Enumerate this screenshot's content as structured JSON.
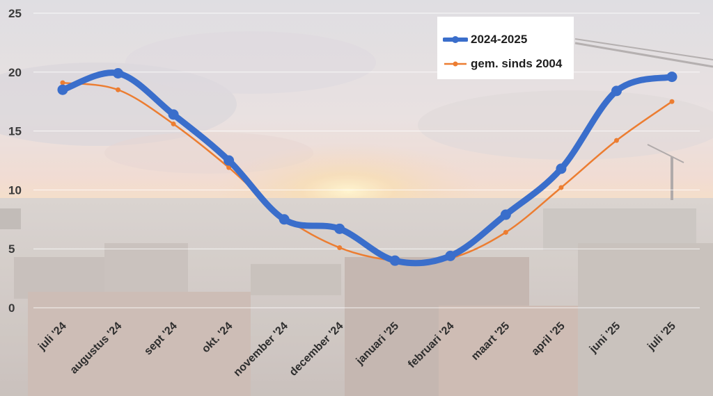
{
  "chart_data": {
    "type": "line",
    "categories": [
      "juli '24",
      "augustus '24",
      "sept '24",
      "okt. '24",
      "november '24",
      "december '24",
      "januari '25",
      "februari '24",
      "maart '25",
      "april '25",
      "juni '25",
      "juli '25"
    ],
    "series": [
      {
        "name": "2024-2025",
        "color": "#3a6ecb",
        "values": [
          18.5,
          19.9,
          16.4,
          12.5,
          7.5,
          6.7,
          4.0,
          4.4,
          7.9,
          11.8,
          18.4,
          19.6
        ]
      },
      {
        "name": "gem. sinds 2004",
        "color": "#ec7d31",
        "values": [
          19.1,
          18.5,
          15.6,
          11.9,
          7.7,
          5.1,
          4.0,
          4.2,
          6.4,
          10.2,
          14.2,
          17.5
        ]
      }
    ],
    "y_ticks": [
      "0",
      "5",
      "10",
      "15",
      "20",
      "25"
    ],
    "ylim": [
      0,
      25
    ],
    "grid": true,
    "legend_position": "top-right",
    "background": "photo of a city skyline at sunset with construction cranes"
  }
}
